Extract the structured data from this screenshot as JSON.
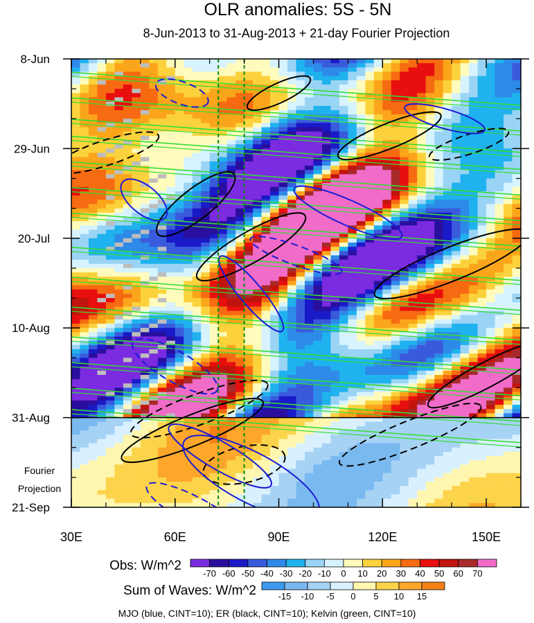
{
  "chart_data": {
    "type": "heatmap",
    "title": "OLR anomalies: 5S - 5N",
    "subtitle": "8-Jun-2013 to 31-Aug-2013 + 21-day Fourier Projection",
    "x_axis": {
      "label": "",
      "range": [
        30,
        160
      ],
      "unit": "degrees E",
      "ticks": [
        30,
        60,
        90,
        120,
        150
      ],
      "tick_labels": [
        "30E",
        "60E",
        "90E",
        "120E",
        "150E"
      ]
    },
    "y_axis": {
      "label": "",
      "direction": "time increasing downward",
      "ticks": [
        "8-Jun",
        "29-Jun",
        "20-Jul",
        "10-Aug",
        "31-Aug",
        "21-Sep"
      ],
      "tick_days_from_start": [
        0,
        21,
        42,
        63,
        84,
        105
      ]
    },
    "projection_label": [
      "Fourier",
      "Projection"
    ],
    "observation_end": "31-Aug",
    "reference_lines_lon": [
      72.5,
      80
    ],
    "obs_colorbar": {
      "label": "Obs: W/m^2",
      "levels": [
        -70,
        -60,
        -50,
        -40,
        -30,
        -20,
        -10,
        0,
        10,
        20,
        30,
        40,
        50,
        60,
        70
      ],
      "colors": [
        "#7b2be0",
        "#2a0f9e",
        "#1a1ac8",
        "#3a5adc",
        "#2e8ae8",
        "#1fb2ee",
        "#9ad4f5",
        "#d6f3ff",
        "#fffbbd",
        "#fbd23c",
        "#fba51a",
        "#f66a12",
        "#e80f0f",
        "#c0140c",
        "#a82a2a",
        "#f06cc8"
      ]
    },
    "waves_colorbar": {
      "label": "Sum of Waves: W/m^2",
      "levels": [
        -15,
        -10,
        -5,
        0,
        5,
        10,
        15
      ],
      "colors": [
        "#3d9af0",
        "#7ab8f0",
        "#a6d2f4",
        "#d9f1ff",
        "#fff6b0",
        "#fcd44b",
        "#fca72a",
        "#f58016"
      ]
    },
    "contours": [
      {
        "name": "MJO",
        "color": "#1b1bd6",
        "cint": 10
      },
      {
        "name": "ER",
        "color": "#000000",
        "cint": 10
      },
      {
        "name": "Kelvin",
        "color": "#33dd33",
        "cint": 10
      }
    ],
    "missing_data_color": "#bdbdbd"
  },
  "footer": "MJO (blue, CINT=10); ER (black, CINT=10); Kelvin (green, CINT=10)"
}
